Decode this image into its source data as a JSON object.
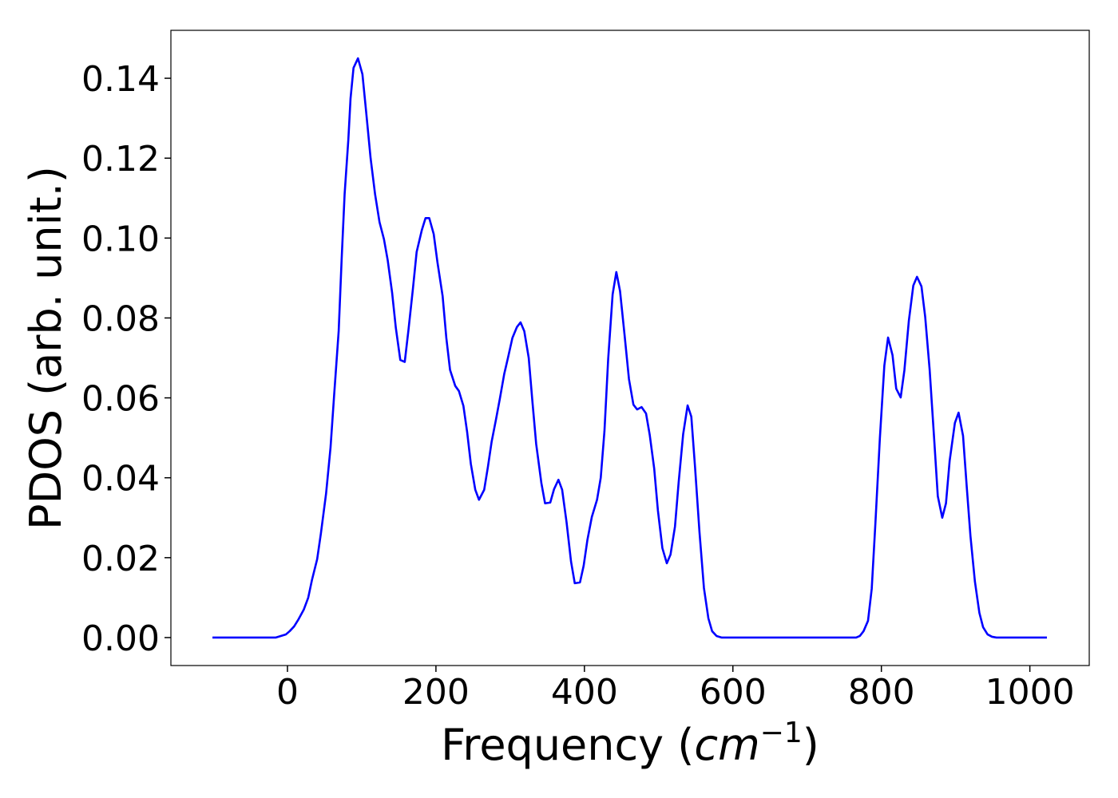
{
  "chart_data": {
    "type": "line",
    "x_label": [
      "Frequency (",
      "cm",
      "−1",
      ")"
    ],
    "y_label": "PDOS (arb. unit.)",
    "xlim": [
      -157,
      1080
    ],
    "ylim": [
      -0.007,
      0.152
    ],
    "xticks": [
      0,
      200,
      400,
      600,
      800,
      1000
    ],
    "yticks": [
      {
        "value": 0,
        "label": "0.00"
      },
      {
        "value": 0.02,
        "label": "0.02"
      },
      {
        "value": 0.04,
        "label": "0.04"
      },
      {
        "value": 0.06,
        "label": "0.06"
      },
      {
        "value": 0.08,
        "label": "0.08"
      },
      {
        "value": 0.1,
        "label": "0.10"
      },
      {
        "value": 0.12,
        "label": "0.12"
      },
      {
        "value": 0.14,
        "label": "0.14"
      }
    ],
    "grid": false,
    "x": [
      -101,
      -16,
      -9,
      -2,
      3,
      9,
      15,
      22,
      28,
      33,
      40,
      45,
      52,
      58,
      63,
      69,
      73,
      77,
      82,
      85,
      89,
      95,
      101,
      106,
      112,
      118,
      124,
      130,
      135,
      141,
      146,
      152,
      158,
      163,
      169,
      174,
      181,
      186,
      191,
      197,
      202,
      209,
      214,
      219,
      226,
      231,
      237,
      242,
      247,
      253,
      258,
      265,
      270,
      275,
      281,
      286,
      292,
      297,
      303,
      309,
      314,
      319,
      325,
      330,
      335,
      342,
      347,
      354,
      359,
      365,
      370,
      376,
      382,
      387,
      394,
      399,
      404,
      410,
      417,
      422,
      427,
      432,
      438,
      443,
      448,
      454,
      460,
      466,
      471,
      477,
      483,
      488,
      494,
      499,
      505,
      511,
      516,
      522,
      527,
      533,
      539,
      544,
      549,
      555,
      561,
      567,
      572,
      578,
      585,
      766,
      771,
      776,
      782,
      787,
      792,
      798,
      804,
      809,
      815,
      820,
      826,
      831,
      837,
      843,
      848,
      854,
      859,
      865,
      871,
      876,
      882,
      887,
      892,
      899,
      904,
      910,
      915,
      920,
      926,
      932,
      937,
      943,
      949,
      955,
      1023
    ],
    "series": [
      {
        "color": "#0000ff",
        "values": [
          0,
          0,
          0.0004,
          0.0008,
          0.0016,
          0.0028,
          0.0046,
          0.007,
          0.01,
          0.0144,
          0.0196,
          0.026,
          0.036,
          0.0475,
          0.061,
          0.0767,
          0.0947,
          0.111,
          0.1246,
          0.135,
          0.1426,
          0.145,
          0.141,
          0.1316,
          0.12,
          0.111,
          0.104,
          0.0997,
          0.0945,
          0.0863,
          0.0775,
          0.0695,
          0.069,
          0.077,
          0.0873,
          0.0965,
          0.102,
          0.105,
          0.105,
          0.101,
          0.094,
          0.0855,
          0.075,
          0.067,
          0.063,
          0.0617,
          0.058,
          0.0515,
          0.0435,
          0.037,
          0.0345,
          0.037,
          0.0427,
          0.049,
          0.0547,
          0.0597,
          0.066,
          0.07,
          0.075,
          0.0777,
          0.0789,
          0.0767,
          0.07,
          0.059,
          0.0485,
          0.0387,
          0.0336,
          0.0338,
          0.0371,
          0.0395,
          0.037,
          0.0288,
          0.019,
          0.0136,
          0.0138,
          0.018,
          0.0244,
          0.0302,
          0.0345,
          0.04,
          0.0517,
          0.0697,
          0.0859,
          0.0915,
          0.0867,
          0.0759,
          0.0647,
          0.0583,
          0.0571,
          0.0577,
          0.0561,
          0.0507,
          0.0423,
          0.0318,
          0.0224,
          0.0186,
          0.0208,
          0.0278,
          0.039,
          0.0509,
          0.0581,
          0.0553,
          0.0427,
          0.0264,
          0.0124,
          0.0048,
          0.0016,
          0.0004,
          0,
          0,
          0.0004,
          0.0016,
          0.0042,
          0.0122,
          0.0288,
          0.05,
          0.0681,
          0.0751,
          0.0707,
          0.0623,
          0.0601,
          0.0669,
          0.0793,
          0.0881,
          0.0903,
          0.0879,
          0.0803,
          0.0671,
          0.05,
          0.0354,
          0.03,
          0.0336,
          0.0443,
          0.0537,
          0.0563,
          0.0505,
          0.0377,
          0.0254,
          0.014,
          0.0062,
          0.0026,
          0.0008,
          0.0002,
          0,
          0
        ]
      }
    ]
  }
}
